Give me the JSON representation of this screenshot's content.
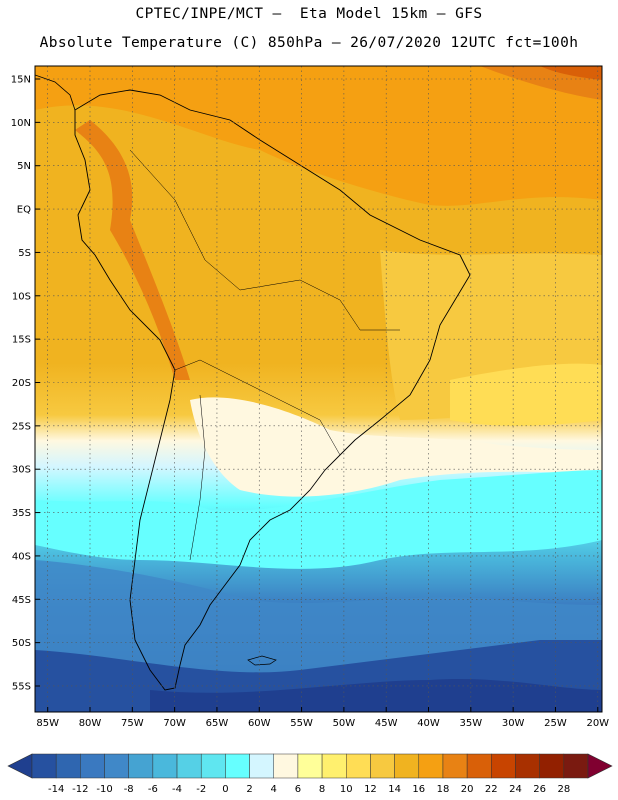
{
  "header": {
    "line1": "CPTEC/INPE/MCT —  Eta Model 15km — GFS",
    "line2": "Absolute Temperature (C) 850hPa — 26/07/2020 12UTC fct=100h"
  },
  "map": {
    "lat_labels": [
      "15N",
      "10N",
      "5N",
      "EQ",
      "5S",
      "10S",
      "15S",
      "20S",
      "25S",
      "30S",
      "35S",
      "40S",
      "45S",
      "50S",
      "55S"
    ],
    "lon_labels": [
      "85W",
      "80W",
      "75W",
      "70W",
      "65W",
      "60W",
      "55W",
      "50W",
      "45W",
      "40W",
      "35W",
      "30W",
      "25W",
      "20W"
    ],
    "lat_values": [
      15,
      10,
      5,
      0,
      -5,
      -10,
      -15,
      -20,
      -25,
      -30,
      -35,
      -40,
      -45,
      -50,
      -55
    ],
    "lon_values": [
      -85,
      -80,
      -75,
      -70,
      -65,
      -60,
      -55,
      -50,
      -45,
      -40,
      -35,
      -30,
      -25,
      -20
    ]
  },
  "colorbar": {
    "labels": [
      "-14",
      "-12",
      "-10",
      "-8",
      "-6",
      "-4",
      "-2",
      "0",
      "2",
      "4",
      "6",
      "8",
      "10",
      "12",
      "14",
      "16",
      "18",
      "20",
      "22",
      "24",
      "26",
      "28"
    ],
    "colors": [
      "#1f3f8f",
      "#2651a0",
      "#2f66b0",
      "#3a79c0",
      "#4088c8",
      "#45a3d2",
      "#4ab8dc",
      "#55d0e6",
      "#5fe6f0",
      "#66ffff",
      "#d4f6ff",
      "#fff8e0",
      "#ffff99",
      "#fff06e",
      "#ffdd55",
      "#f7c940",
      "#f0b320",
      "#f5a012",
      "#e88214",
      "#d96008",
      "#c84400",
      "#a83000",
      "#922000",
      "#7a1a10",
      "#800030"
    ]
  }
}
